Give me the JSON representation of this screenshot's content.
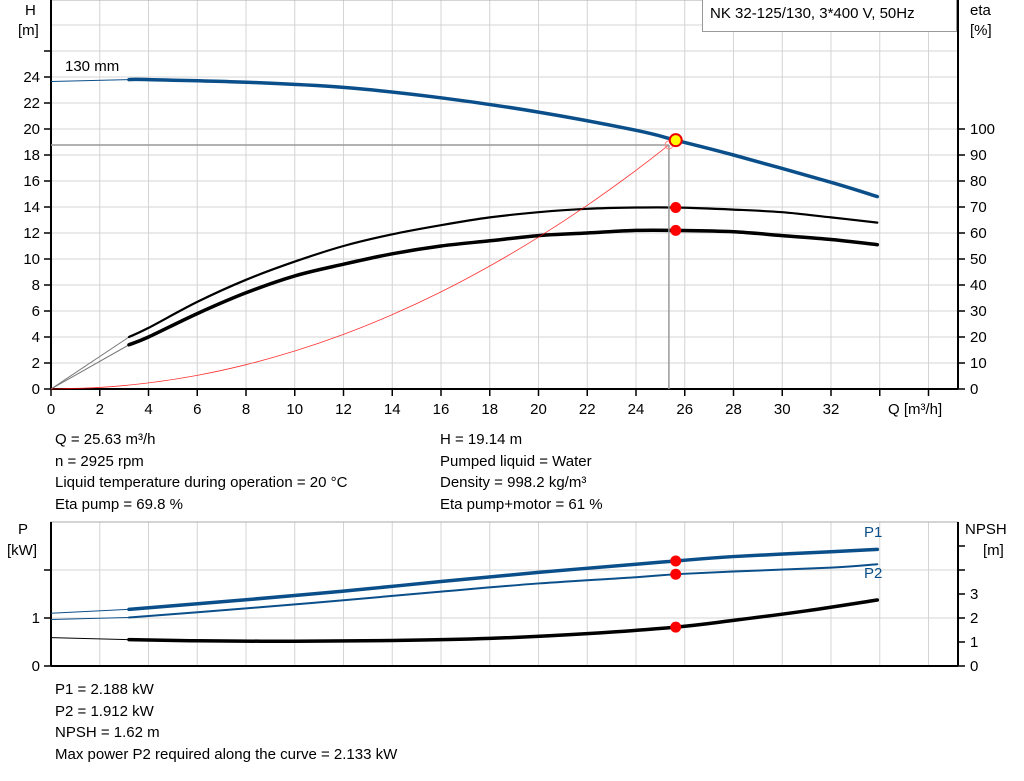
{
  "chart_data": [
    {
      "type": "line",
      "title": "NK 32-125/130, 3*400 V, 50Hz",
      "xlabel": "Q [m³/h]",
      "ylabel": "H\n[m]",
      "ylabel_lines": [
        "H",
        "[m]"
      ],
      "y2label_lines": [
        "eta",
        "[%]"
      ],
      "xlim": [
        0,
        37.2
      ],
      "ylim": [
        0,
        29.9
      ],
      "y2lim": [
        0,
        149.6
      ],
      "x_ticks": [
        0,
        2,
        4,
        6,
        8,
        10,
        12,
        14,
        16,
        18,
        20,
        22,
        24,
        26,
        28,
        30,
        32
      ],
      "y_ticks": [
        0,
        2,
        4,
        6,
        8,
        10,
        12,
        14,
        16,
        18,
        20,
        22,
        24
      ],
      "y2_ticks": [
        0,
        10,
        20,
        30,
        40,
        50,
        60,
        70,
        80,
        90,
        100
      ],
      "grid": true,
      "legend_position": "top-right",
      "series": [
        {
          "name": "130 mm",
          "axis": "H",
          "color": "#0b4f8a",
          "x": [
            0,
            3.2,
            4,
            8,
            12,
            16,
            20,
            24,
            25.63,
            28,
            32,
            33.9
          ],
          "y": [
            23.65,
            23.8,
            23.8,
            23.6,
            23.2,
            22.4,
            21.3,
            19.9,
            19.14,
            18.0,
            15.9,
            14.8
          ]
        },
        {
          "axis": "eta",
          "color": "#000000",
          "x": [
            0,
            3.2,
            4,
            6,
            8,
            10,
            12,
            14,
            16,
            18,
            20,
            22,
            24,
            25.63,
            28,
            30,
            32,
            33.9
          ],
          "y": [
            0,
            20,
            23.5,
            33.5,
            42,
            49,
            55,
            59.5,
            63,
            66,
            68,
            69.3,
            69.8,
            69.8,
            69,
            68,
            66,
            64
          ]
        },
        {
          "axis": "eta",
          "color": "#000000",
          "x": [
            0,
            3.2,
            4,
            6,
            8,
            10,
            12,
            14,
            16,
            18,
            20,
            22,
            24,
            25.63,
            28,
            30,
            32,
            33.9
          ],
          "y": [
            0,
            17,
            20,
            29,
            37,
            43.5,
            48,
            52,
            55,
            57,
            59,
            60,
            61,
            61,
            60.5,
            59,
            57.5,
            55.5
          ]
        },
        {
          "axis": "H",
          "color": "#ff0000",
          "x": [
            0,
            2,
            4,
            6,
            8,
            10,
            12,
            14,
            16,
            18,
            20,
            22,
            24,
            25.35
          ],
          "y": [
            0,
            0.12,
            0.47,
            1.05,
            1.87,
            2.92,
            4.2,
            5.72,
            7.47,
            9.46,
            11.68,
            14.13,
            16.82,
            18.77
          ]
        }
      ],
      "operating_point": {
        "q": 25.63,
        "h": 19.14,
        "eta_pump": 69.8,
        "eta_pump_motor": 61
      },
      "required_point": {
        "q": 25.35,
        "h": 18.77
      }
    },
    {
      "type": "line",
      "ylabel_lines": [
        "P",
        "[kW]"
      ],
      "y2label_lines": [
        "NPSH",
        "[m]"
      ],
      "xlim": [
        0,
        37.2
      ],
      "ylim": [
        0,
        2.96
      ],
      "y2lim": [
        0,
        5.92
      ],
      "y_ticks": [
        0,
        1
      ],
      "y_ticks_unlabeled": [
        2
      ],
      "y2_ticks": [
        0,
        1,
        2,
        3
      ],
      "y2_ticks_unlabeled": [
        4,
        5
      ],
      "grid": true,
      "series": [
        {
          "name": "P1",
          "axis": "P",
          "color": "#0b4f8a",
          "x": [
            0,
            3.2,
            8,
            12,
            16,
            20,
            24,
            25.63,
            28,
            32,
            33.9
          ],
          "y": [
            1.1,
            1.18,
            1.38,
            1.56,
            1.76,
            1.95,
            2.12,
            2.188,
            2.28,
            2.38,
            2.43
          ]
        },
        {
          "name": "P2",
          "axis": "P",
          "color": "#0b4f8a",
          "x": [
            0,
            3.2,
            8,
            12,
            16,
            20,
            24,
            25.63,
            28,
            32,
            33.9
          ],
          "y": [
            0.97,
            1.01,
            1.2,
            1.37,
            1.55,
            1.72,
            1.85,
            1.912,
            1.97,
            2.05,
            2.12
          ]
        },
        {
          "axis": "NPSH",
          "color": "#000000",
          "x": [
            0,
            3.2,
            6,
            10,
            14,
            18,
            22,
            25.63,
            28,
            31,
            33.9
          ],
          "y": [
            1.18,
            1.1,
            1.05,
            1.03,
            1.06,
            1.15,
            1.35,
            1.62,
            1.9,
            2.3,
            2.75
          ]
        }
      ],
      "operating_point": {
        "q": 25.63,
        "p1": 2.188,
        "p2": 1.912,
        "npsh": 1.62
      }
    }
  ],
  "info_top": {
    "left": [
      "Q = 25.63 m³/h",
      "n = 2925 rpm",
      "Liquid temperature during operation = 20 °C",
      "Eta pump = 69.8 %"
    ],
    "right": [
      "H = 19.14 m",
      "Pumped liquid = Water",
      "Density = 998.2 kg/m³",
      "Eta pump+motor = 61 %"
    ]
  },
  "info_bottom": [
    "P1 = 2.188 kW",
    "P2 = 1.912 kW",
    "NPSH = 1.62 m",
    "Max power P2 required along the curve = 2.133 kW"
  ],
  "colors": {
    "blue": "#0b4f8a",
    "red": "#ff0000",
    "marker_yellow": "#ffff00",
    "grid": "#d4d4d4"
  }
}
